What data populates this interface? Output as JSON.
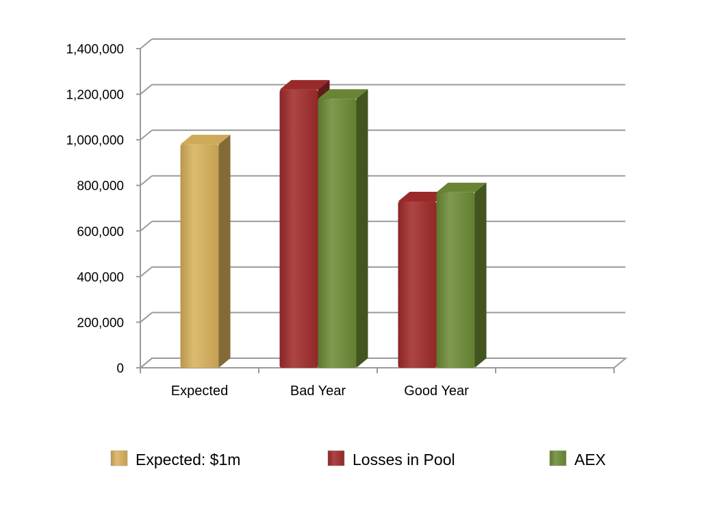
{
  "chart_data": {
    "type": "bar",
    "style": "3d-clustered-column",
    "categories": [
      "Expected",
      "Bad Year",
      "Good Year",
      ""
    ],
    "series": [
      {
        "name": "Expected: $1m",
        "color": "#d9b25c",
        "values": [
          980000,
          null,
          null,
          null
        ]
      },
      {
        "name": "Losses in Pool",
        "color": "#a12c2b",
        "values": [
          null,
          1220000,
          730000,
          null
        ]
      },
      {
        "name": "AEX",
        "color": "#6e8c36",
        "values": [
          null,
          1180000,
          770000,
          null
        ]
      }
    ],
    "ylim": [
      0,
      1400000
    ],
    "yticks": [
      0,
      200000,
      400000,
      600000,
      800000,
      1000000,
      1200000,
      1400000
    ],
    "ytick_labels": [
      "0",
      "200,000",
      "400,000",
      "600,000",
      "800,000",
      "1,000,000",
      "1,200,000",
      "1,400,000"
    ],
    "grid": true,
    "legend_position": "bottom"
  }
}
